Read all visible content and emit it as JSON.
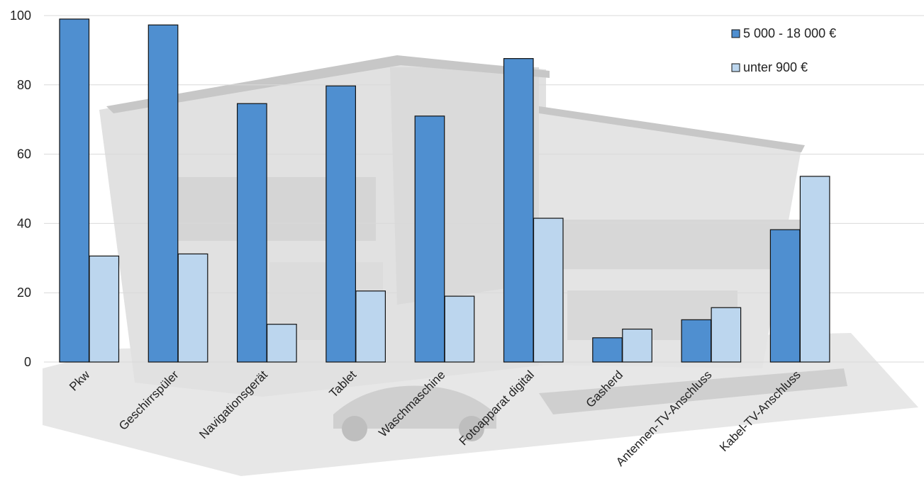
{
  "chart_data": {
    "type": "bar",
    "categories": [
      "Pkw",
      "Geschirrspüler",
      "Navigationsgerät",
      "Tablet",
      "Waschmaschine",
      "Fotoapparat digital",
      "Gasherd",
      "Antennen-TV-Anschluss",
      "Kabel-TV-Anschluss"
    ],
    "series": [
      {
        "name": "5 000 - 18 000 €",
        "color": "#4f8fd0",
        "values": [
          99,
          97.3,
          74.6,
          79.7,
          71,
          87.6,
          7,
          12.2,
          38.2
        ]
      },
      {
        "name": "unter 900 €",
        "color": "#bcd6ee",
        "values": [
          30.6,
          31.2,
          10.9,
          20.5,
          19,
          41.5,
          9.5,
          15.7,
          53.6
        ]
      }
    ],
    "y_ticks": [
      "0",
      "20",
      "40",
      "60",
      "80",
      "100"
    ],
    "ylim": [
      0,
      100
    ],
    "grid": true,
    "legend_position": "top-right",
    "background": "faded grayscale photo of a model house with a car",
    "bar_outline": "#111111",
    "gridline_color": "#d9d9d9"
  }
}
